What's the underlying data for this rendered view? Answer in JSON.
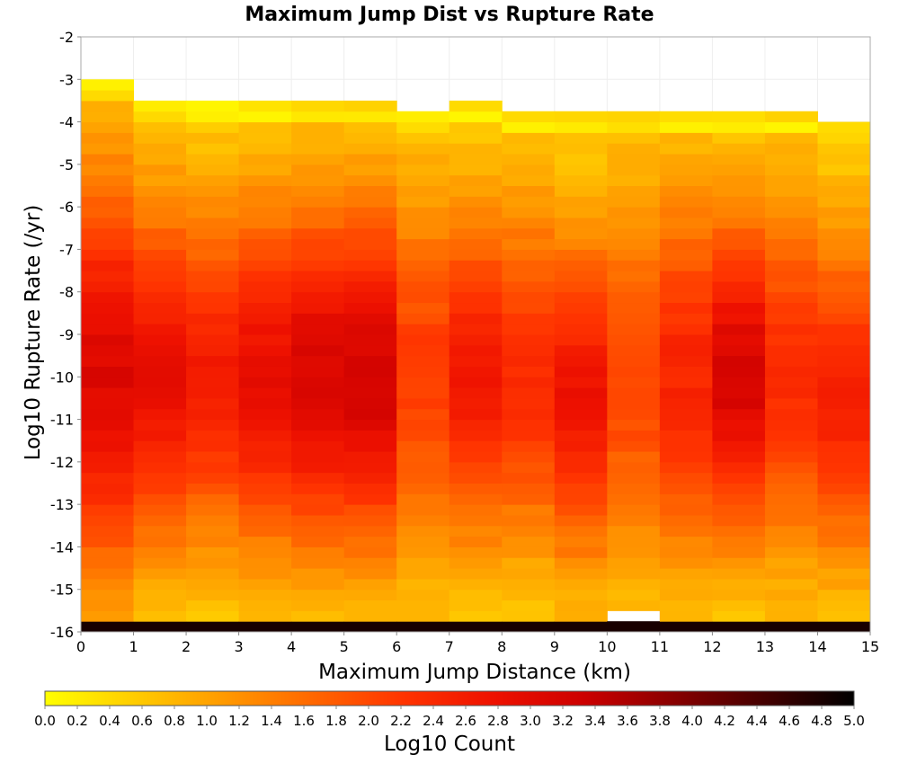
{
  "chart_data": {
    "type": "heatmap",
    "title": "Maximum Jump Dist vs Rupture Rate",
    "xlabel": "Maximum Jump Distance (km)",
    "ylabel": "Log10 Rupture Rate (/yr)",
    "colorbar_label": "Log10 Count",
    "xlim": [
      0,
      15
    ],
    "ylim": [
      -16,
      -2
    ],
    "x_ticks": [
      "0",
      "1",
      "2",
      "3",
      "4",
      "5",
      "6",
      "7",
      "8",
      "9",
      "10",
      "11",
      "12",
      "13",
      "14",
      "15"
    ],
    "y_ticks": [
      "-2",
      "-3",
      "-4",
      "-5",
      "-6",
      "-7",
      "-8",
      "-9",
      "-10",
      "-11",
      "-12",
      "-13",
      "-14",
      "-15",
      "-16"
    ],
    "color_range": [
      0,
      5
    ],
    "colorbar_ticks": [
      "0.0",
      "0.2",
      "0.4",
      "0.6",
      "0.8",
      "1.0",
      "1.2",
      "1.4",
      "1.6",
      "1.8",
      "2.0",
      "2.2",
      "2.4",
      "2.6",
      "2.8",
      "3.0",
      "3.2",
      "3.4",
      "3.6",
      "3.8",
      "4.0",
      "4.2",
      "4.4",
      "4.6",
      "4.8",
      "5.0"
    ],
    "colormap": [
      "#ffff00",
      "#ffcc00",
      "#ff9900",
      "#ff6600",
      "#ff3300",
      "#ee1100",
      "#cc0000",
      "#880000",
      "#440000",
      "#000000"
    ],
    "grid": true,
    "y_bin_width": 0.25,
    "y_bin_start": -16,
    "bottom_row_value": 4.8,
    "columns": [
      {
        "x": 0,
        "y_top": -3.0,
        "peak_y": -10.0,
        "peak": 2.7,
        "spread": 3.5
      },
      {
        "x": 1,
        "y_top": -3.5,
        "peak_y": -10.0,
        "peak": 2.5,
        "spread": 3.0
      },
      {
        "x": 2,
        "y_top": -3.5,
        "peak_y": -10.0,
        "peak": 2.3,
        "spread": 2.9
      },
      {
        "x": 3,
        "y_top": -3.5,
        "peak_y": -10.0,
        "peak": 2.5,
        "spread": 3.0
      },
      {
        "x": 4,
        "y_top": -3.5,
        "peak_y": -10.0,
        "peak": 2.8,
        "spread": 3.0
      },
      {
        "x": 5,
        "y_top": -3.5,
        "peak_y": -10.0,
        "peak": 2.85,
        "spread": 3.0
      },
      {
        "x": 6,
        "y_top": -3.75,
        "peak_y": -10.0,
        "peak": 1.8,
        "spread": 3.2
      },
      {
        "x": 7,
        "y_top": -3.5,
        "peak_y": -10.0,
        "peak": 2.3,
        "spread": 2.9
      },
      {
        "x": 8,
        "y_top": -3.75,
        "peak_y": -10.0,
        "peak": 2.0,
        "spread": 3.0
      },
      {
        "x": 9,
        "y_top": -3.75,
        "peak_y": -10.5,
        "peak": 2.4,
        "spread": 2.8
      },
      {
        "x": 10,
        "y_top": -3.75,
        "peak_y": -10.0,
        "peak": 1.7,
        "spread": 3.2
      },
      {
        "x": 11,
        "y_top": -3.75,
        "peak_y": -10.0,
        "peak": 2.1,
        "spread": 3.2
      },
      {
        "x": 12,
        "y_top": -3.75,
        "peak_y": -10.0,
        "peak": 2.8,
        "spread": 2.8
      },
      {
        "x": 13,
        "y_top": -3.75,
        "peak_y": -10.0,
        "peak": 2.0,
        "spread": 3.1
      },
      {
        "x": 14,
        "y_top": -4.0,
        "peak_y": -10.5,
        "peak": 2.2,
        "spread": 2.8
      }
    ],
    "empty_cells": [
      [
        10,
        -15.75
      ]
    ]
  }
}
